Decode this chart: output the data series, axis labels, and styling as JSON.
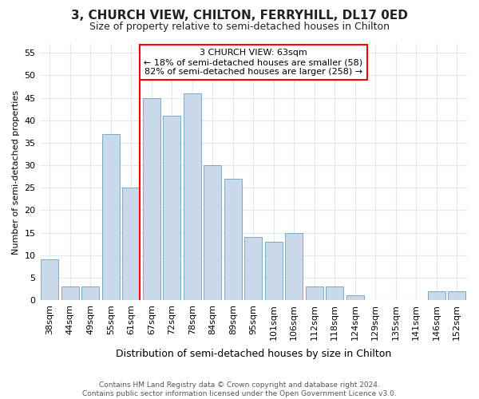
{
  "title": "3, CHURCH VIEW, CHILTON, FERRYHILL, DL17 0ED",
  "subtitle": "Size of property relative to semi-detached houses in Chilton",
  "xlabel": "Distribution of semi-detached houses by size in Chilton",
  "ylabel": "Number of semi-detached properties",
  "categories": [
    "38sqm",
    "44sqm",
    "49sqm",
    "55sqm",
    "61sqm",
    "67sqm",
    "72sqm",
    "78sqm",
    "84sqm",
    "89sqm",
    "95sqm",
    "101sqm",
    "106sqm",
    "112sqm",
    "118sqm",
    "124sqm",
    "129sqm",
    "135sqm",
    "141sqm",
    "146sqm",
    "152sqm"
  ],
  "values": [
    9,
    3,
    3,
    37,
    25,
    45,
    41,
    46,
    30,
    27,
    14,
    13,
    15,
    3,
    3,
    1,
    0,
    0,
    0,
    2,
    2
  ],
  "bar_color": "#c9d9ea",
  "bar_edge_color": "#7aaac8",
  "property_label": "3 CHURCH VIEW: 63sqm",
  "smaller_pct": 18,
  "smaller_count": 58,
  "larger_pct": 82,
  "larger_count": 258,
  "vline_color": "red",
  "annotation_box_color": "red",
  "ylim": [
    0,
    57
  ],
  "yticks": [
    0,
    5,
    10,
    15,
    20,
    25,
    30,
    35,
    40,
    45,
    50,
    55
  ],
  "background_color": "#ffffff",
  "grid_color": "#e0e8f0",
  "footer": "Contains HM Land Registry data © Crown copyright and database right 2024.\nContains public sector information licensed under the Open Government Licence v3.0."
}
